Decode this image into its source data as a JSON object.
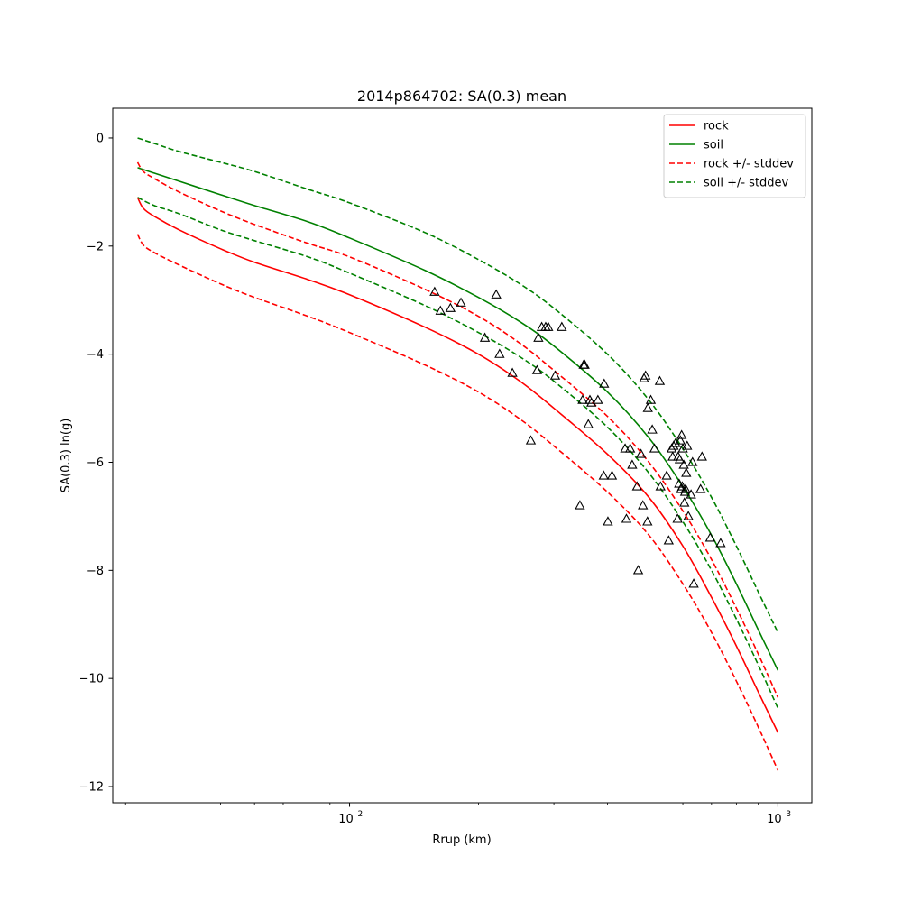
{
  "chart_data": {
    "type": "line",
    "title": "2014p864702: SA(0.3) mean",
    "xlabel": "Rrup (km)",
    "ylabel": "SA(0.3) ln(g)",
    "xscale": "log",
    "xlim": [
      28,
      1200
    ],
    "ylim": [
      -12.3,
      0.55
    ],
    "grid": false,
    "legend_position": "top-right",
    "x_ticks_major": [
      {
        "value": 100,
        "base": "10",
        "exp": "2"
      },
      {
        "value": 1000,
        "base": "10",
        "exp": "3"
      }
    ],
    "x_ticks_minor": [
      30,
      40,
      50,
      60,
      70,
      80,
      90,
      200,
      300,
      400,
      500,
      600,
      700,
      800,
      900
    ],
    "y_ticks": [
      {
        "value": 0,
        "label": "0"
      },
      {
        "value": -2,
        "label": "−2"
      },
      {
        "value": -4,
        "label": "−4"
      },
      {
        "value": -6,
        "label": "−6"
      },
      {
        "value": -8,
        "label": "−8"
      },
      {
        "value": -10,
        "label": "−10"
      },
      {
        "value": -12,
        "label": "−12"
      }
    ],
    "series": [
      {
        "name": "rock",
        "color": "#ff0000",
        "dash": "solid",
        "x": [
          32,
          33,
          35,
          40,
          50,
          60,
          80,
          100,
          150,
          200,
          250,
          300,
          400,
          500,
          600,
          700,
          800,
          900,
          1000
        ],
        "y": [
          -1.1,
          -1.3,
          -1.45,
          -1.7,
          -2.05,
          -2.3,
          -2.62,
          -2.9,
          -3.5,
          -4.0,
          -4.5,
          -5.0,
          -5.85,
          -6.65,
          -7.55,
          -8.5,
          -9.4,
          -10.25,
          -11.0
        ]
      },
      {
        "name": "soil",
        "color": "#008000",
        "dash": "solid",
        "x": [
          32,
          35,
          40,
          50,
          60,
          80,
          100,
          150,
          200,
          250,
          300,
          400,
          500,
          600,
          700,
          800,
          900,
          1000
        ],
        "y": [
          -0.55,
          -0.65,
          -0.8,
          -1.05,
          -1.25,
          -1.55,
          -1.85,
          -2.45,
          -2.95,
          -3.4,
          -3.85,
          -4.7,
          -5.55,
          -6.45,
          -7.35,
          -8.25,
          -9.1,
          -9.85
        ]
      },
      {
        "name": "rock +/- stddev",
        "legend": true,
        "color": "#ff0000",
        "dash": "dashed",
        "x": [
          32,
          33,
          35,
          40,
          50,
          60,
          80,
          100,
          150,
          200,
          250,
          300,
          400,
          500,
          600,
          700,
          800,
          900,
          1000
        ],
        "y": [
          -0.45,
          -0.62,
          -0.75,
          -1.0,
          -1.35,
          -1.6,
          -1.95,
          -2.2,
          -2.8,
          -3.3,
          -3.8,
          -4.3,
          -5.15,
          -6.0,
          -6.9,
          -7.8,
          -8.7,
          -9.55,
          -10.35
        ]
      },
      {
        "name": "rock lower",
        "legend": false,
        "color": "#ff0000",
        "dash": "dashed",
        "x": [
          32,
          33,
          35,
          40,
          50,
          60,
          80,
          100,
          150,
          200,
          250,
          300,
          400,
          500,
          600,
          700,
          800,
          900,
          1000
        ],
        "y": [
          -1.78,
          -1.98,
          -2.12,
          -2.35,
          -2.7,
          -2.95,
          -3.3,
          -3.6,
          -4.2,
          -4.7,
          -5.2,
          -5.7,
          -6.55,
          -7.35,
          -8.25,
          -9.15,
          -10.05,
          -10.9,
          -11.7
        ]
      },
      {
        "name": "soil +/- stddev",
        "legend": true,
        "color": "#008000",
        "dash": "dashed",
        "x": [
          32,
          35,
          40,
          50,
          60,
          80,
          100,
          150,
          200,
          250,
          300,
          400,
          500,
          600,
          700,
          800,
          900,
          1000
        ],
        "y": [
          0.0,
          -0.1,
          -0.25,
          -0.45,
          -0.62,
          -0.95,
          -1.2,
          -1.75,
          -2.25,
          -2.7,
          -3.15,
          -4.0,
          -4.85,
          -5.75,
          -6.65,
          -7.55,
          -8.4,
          -9.15
        ]
      },
      {
        "name": "soil lower",
        "legend": false,
        "color": "#008000",
        "dash": "dashed",
        "x": [
          32,
          35,
          40,
          50,
          60,
          80,
          100,
          150,
          200,
          250,
          300,
          400,
          500,
          600,
          700,
          800,
          900,
          1000
        ],
        "y": [
          -1.1,
          -1.25,
          -1.4,
          -1.7,
          -1.9,
          -2.2,
          -2.5,
          -3.1,
          -3.6,
          -4.05,
          -4.5,
          -5.35,
          -6.2,
          -7.1,
          -8.0,
          -8.9,
          -9.75,
          -10.55
        ]
      }
    ],
    "observations": {
      "marker": "triangle",
      "points": [
        [
          158,
          -2.85
        ],
        [
          163,
          -3.2
        ],
        [
          172,
          -3.15
        ],
        [
          182,
          -3.05
        ],
        [
          207,
          -3.7
        ],
        [
          220,
          -2.9
        ],
        [
          224,
          -4.0
        ],
        [
          240,
          -4.35
        ],
        [
          265,
          -5.6
        ],
        [
          274,
          -4.3
        ],
        [
          276,
          -3.7
        ],
        [
          281,
          -3.5
        ],
        [
          287,
          -3.5
        ],
        [
          291,
          -3.5
        ],
        [
          302,
          -4.4
        ],
        [
          313,
          -3.5
        ],
        [
          345,
          -6.8
        ],
        [
          350,
          -4.85
        ],
        [
          352,
          -4.2
        ],
        [
          354,
          -4.2
        ],
        [
          361,
          -5.3
        ],
        [
          364,
          -4.85
        ],
        [
          367,
          -4.9
        ],
        [
          380,
          -4.85
        ],
        [
          392,
          -6.25
        ],
        [
          393,
          -4.55
        ],
        [
          401,
          -7.1
        ],
        [
          410,
          -6.25
        ],
        [
          440,
          -5.75
        ],
        [
          443,
          -7.05
        ],
        [
          452,
          -5.75
        ],
        [
          457,
          -6.05
        ],
        [
          469,
          -6.45
        ],
        [
          472,
          -8.0
        ],
        [
          479,
          -5.85
        ],
        [
          484,
          -6.8
        ],
        [
          487,
          -4.45
        ],
        [
          491,
          -4.4
        ],
        [
          496,
          -7.1
        ],
        [
          497,
          -5.0
        ],
        [
          505,
          -4.85
        ],
        [
          509,
          -5.4
        ],
        [
          515,
          -5.75
        ],
        [
          530,
          -4.5
        ],
        [
          532,
          -6.45
        ],
        [
          550,
          -6.25
        ],
        [
          556,
          -7.45
        ],
        [
          565,
          -5.75
        ],
        [
          568,
          -5.9
        ],
        [
          571,
          -5.7
        ],
        [
          577,
          -5.65
        ],
        [
          583,
          -7.05
        ],
        [
          585,
          -5.9
        ],
        [
          588,
          -6.4
        ],
        [
          590,
          -5.95
        ],
        [
          592,
          -5.6
        ],
        [
          594,
          -6.5
        ],
        [
          596,
          -5.5
        ],
        [
          598,
          -6.45
        ],
        [
          600,
          -5.75
        ],
        [
          603,
          -6.05
        ],
        [
          605,
          -6.75
        ],
        [
          607,
          -6.55
        ],
        [
          609,
          -6.5
        ],
        [
          611,
          -6.2
        ],
        [
          614,
          -5.7
        ],
        [
          618,
          -7.0
        ],
        [
          627,
          -6.6
        ],
        [
          632,
          -6.0
        ],
        [
          636,
          -8.25
        ],
        [
          660,
          -6.5
        ],
        [
          665,
          -5.9
        ],
        [
          695,
          -7.4
        ],
        [
          735,
          -7.5
        ]
      ]
    }
  }
}
